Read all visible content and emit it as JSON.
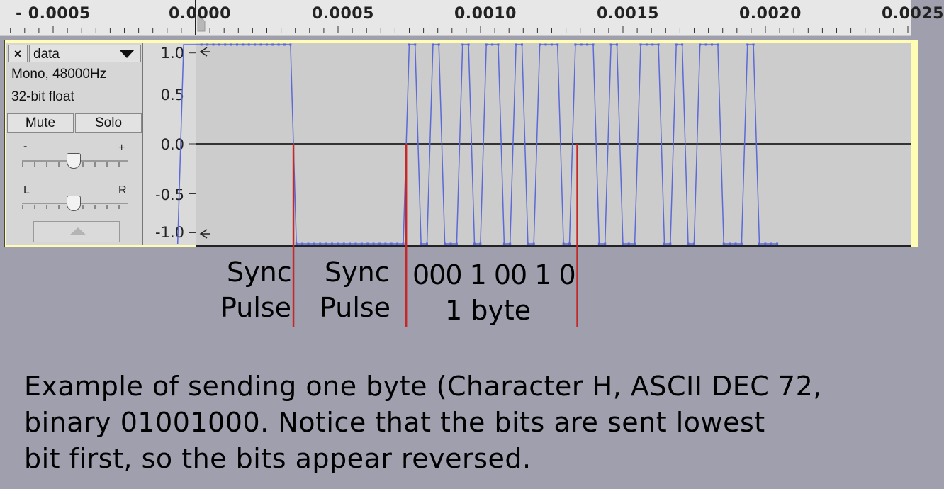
{
  "ruler": {
    "ticks": [
      {
        "value": -0.0005,
        "label": "- 0.0005"
      },
      {
        "value": 0,
        "label": "0.0000"
      },
      {
        "value": 0.0005,
        "label": "0.0005"
      },
      {
        "value": 0.001,
        "label": "0.0010"
      },
      {
        "value": 0.0015,
        "label": "0.0015"
      },
      {
        "value": 0.002,
        "label": "0.0020"
      },
      {
        "value": 0.0025,
        "label": "0.0025"
      }
    ]
  },
  "track": {
    "close_label": "×",
    "name": "data",
    "format_line1": "Mono, 48000Hz",
    "format_line2": "32-bit float",
    "mute_label": "Mute",
    "solo_label": "Solo",
    "gain_minus": "-",
    "gain_plus": "+",
    "pan_left": "L",
    "pan_right": "R",
    "amplitude_labels": [
      "1.0",
      "0.5",
      "0.0",
      "-0.5",
      "-1.0"
    ],
    "amplitude_values": [
      1.0,
      0.5,
      0.0,
      -0.5,
      -1.0
    ]
  },
  "waveform": {
    "sample_rate": 48000,
    "segments": [
      {
        "level": 1,
        "samples": 19
      },
      {
        "level": -1,
        "samples": 19
      },
      {
        "level": 1,
        "samples": 2
      },
      {
        "level": -1,
        "samples": 2
      },
      {
        "level": 1,
        "samples": 2
      },
      {
        "level": -1,
        "samples": 3
      },
      {
        "level": 1,
        "samples": 2
      },
      {
        "level": -1,
        "samples": 2
      },
      {
        "level": 1,
        "samples": 3
      },
      {
        "level": -1,
        "samples": 2
      },
      {
        "level": 1,
        "samples": 2
      },
      {
        "level": -1,
        "samples": 2
      },
      {
        "level": 1,
        "samples": 4
      },
      {
        "level": -1,
        "samples": 2
      },
      {
        "level": 1,
        "samples": 4
      },
      {
        "level": -1,
        "samples": 2
      },
      {
        "level": 1,
        "samples": 2
      },
      {
        "level": -1,
        "samples": 3
      },
      {
        "level": 1,
        "samples": 4
      },
      {
        "level": -1,
        "samples": 2
      },
      {
        "level": 1,
        "samples": 2
      },
      {
        "level": -1,
        "samples": 2
      },
      {
        "level": 1,
        "samples": 4
      },
      {
        "level": -1,
        "samples": 4
      },
      {
        "level": 1,
        "samples": 2
      },
      {
        "level": -1,
        "samples": 4
      }
    ],
    "wave_color": "#5b6ad6",
    "marker_color": "#c62828"
  },
  "annotations": {
    "sync1_line1": "Sync",
    "sync1_line2": "Pulse",
    "sync2_line1": "Sync",
    "sync2_line2": "Pulse",
    "bits": "000 1 00 1 0",
    "byte_label": "1 byte"
  },
  "caption": {
    "line1": "Example of sending one byte (Character H, ASCII DEC 72,",
    "line2": "binary 01001000. Notice that the bits are sent lowest",
    "line3": "bit first, so the bits appear reversed."
  }
}
